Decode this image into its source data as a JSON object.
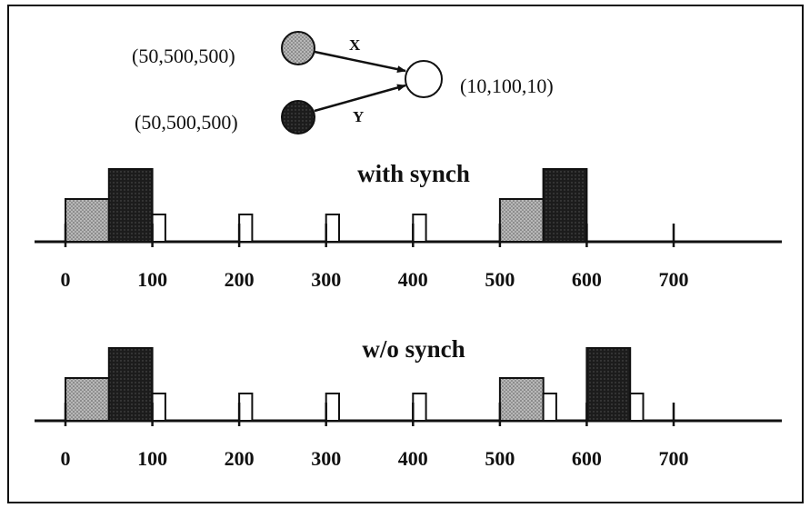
{
  "diagram": {
    "source_x": {
      "label": "(50,500,500)",
      "edge_label": "X",
      "fill": "#9a9a9a"
    },
    "source_y": {
      "label": "(50,500,500)",
      "edge_label": "Y",
      "fill": "#1c1c1c"
    },
    "target": {
      "label": "(10,100,10)",
      "fill": "#ffffff"
    }
  },
  "timelines": [
    {
      "title": "with synch",
      "ticks": [
        "0",
        "100",
        "200",
        "300",
        "400",
        "500",
        "600",
        "700"
      ],
      "bars": [
        {
          "type": "x",
          "start": 0,
          "end": 50,
          "level": "medium"
        },
        {
          "type": "y",
          "start": 50,
          "end": 100,
          "level": "tall"
        },
        {
          "type": "out",
          "start": 100,
          "end": 115,
          "level": "short"
        },
        {
          "type": "out",
          "start": 200,
          "end": 215,
          "level": "short"
        },
        {
          "type": "out",
          "start": 300,
          "end": 315,
          "level": "short"
        },
        {
          "type": "out",
          "start": 400,
          "end": 415,
          "level": "short"
        },
        {
          "type": "x",
          "start": 500,
          "end": 550,
          "level": "medium"
        },
        {
          "type": "y",
          "start": 550,
          "end": 600,
          "level": "tall"
        }
      ]
    },
    {
      "title": "w/o synch",
      "ticks": [
        "0",
        "100",
        "200",
        "300",
        "400",
        "500",
        "600",
        "700"
      ],
      "bars": [
        {
          "type": "x",
          "start": 0,
          "end": 50,
          "level": "medium"
        },
        {
          "type": "y",
          "start": 50,
          "end": 100,
          "level": "tall"
        },
        {
          "type": "out",
          "start": 100,
          "end": 115,
          "level": "short"
        },
        {
          "type": "out",
          "start": 200,
          "end": 215,
          "level": "short"
        },
        {
          "type": "out",
          "start": 300,
          "end": 315,
          "level": "short"
        },
        {
          "type": "out",
          "start": 400,
          "end": 415,
          "level": "short"
        },
        {
          "type": "x",
          "start": 500,
          "end": 550,
          "level": "medium"
        },
        {
          "type": "out",
          "start": 550,
          "end": 565,
          "level": "short"
        },
        {
          "type": "y",
          "start": 600,
          "end": 650,
          "level": "tall"
        },
        {
          "type": "out",
          "start": 650,
          "end": 665,
          "level": "short"
        }
      ]
    }
  ],
  "colors": {
    "x_fill": "#9a9a9a",
    "y_fill": "#1c1c1c",
    "out_fill": "#ffffff",
    "stroke": "#111111"
  }
}
